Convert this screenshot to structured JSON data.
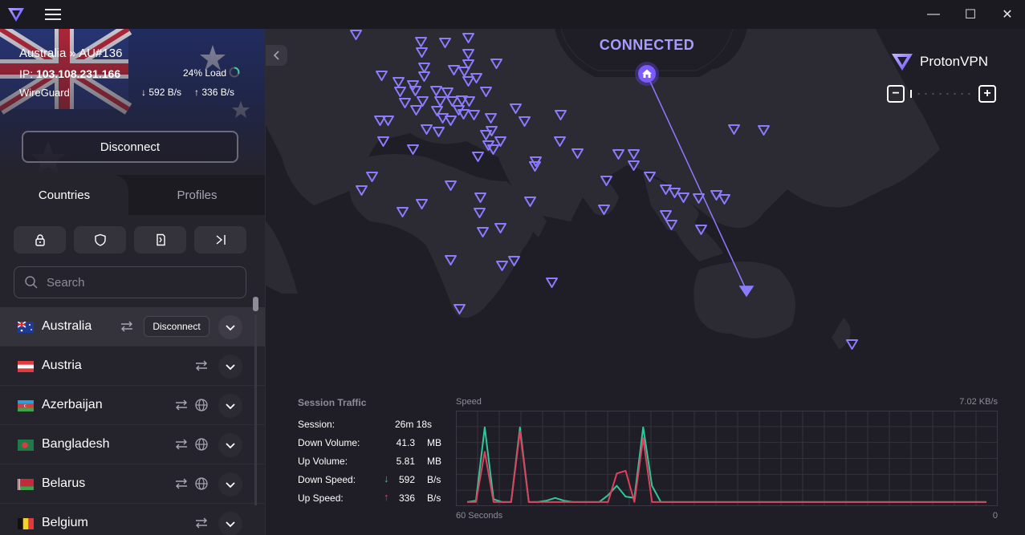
{
  "titlebar": {
    "minimize": "—",
    "maximize": "☐",
    "close": "✕"
  },
  "connection": {
    "server": "Australia » AU#136",
    "ip_label": "IP:",
    "ip": "103.108.231.166",
    "load": "24% Load",
    "protocol": "WireGuard",
    "down_speed": "592 B/s",
    "up_speed": "336 B/s",
    "disconnect_label": "Disconnect"
  },
  "tabs": {
    "countries": "Countries",
    "profiles": "Profiles"
  },
  "search": {
    "placeholder": "Search"
  },
  "countries": [
    {
      "name": "Australia",
      "connected": true,
      "disconnect_label": "Disconnect"
    },
    {
      "name": "Austria"
    },
    {
      "name": "Azerbaijan"
    },
    {
      "name": "Bangladesh"
    },
    {
      "name": "Belarus"
    },
    {
      "name": "Belgium"
    }
  ],
  "map": {
    "status": "CONNECTED",
    "brand": "ProtonVPN",
    "zoom_out": "−",
    "zoom_in": "+"
  },
  "traffic": {
    "title": "Session Traffic",
    "rows": [
      {
        "label": "Session:",
        "value": "26m 18s",
        "unit": ""
      },
      {
        "label": "Down Volume:",
        "value": "41.3",
        "unit": "MB"
      },
      {
        "label": "Up Volume:",
        "value": "5.81",
        "unit": "MB"
      },
      {
        "label": "Down Speed:",
        "value": "592",
        "unit": "B/s"
      },
      {
        "label": "Up Speed:",
        "value": "336",
        "unit": "B/s"
      }
    ]
  },
  "chart_data": {
    "type": "line",
    "title": "Speed",
    "max_label": "7.02  KB/s",
    "x_start_label": "60 Seconds",
    "x_end_label": "0",
    "ylim": [
      0,
      7.02
    ],
    "grid": true,
    "colors": {
      "down": "#2fc89a",
      "up": "#e0405e"
    },
    "series": [
      {
        "name": "down",
        "values": [
          0.3,
          0.4,
          5.8,
          0.5,
          0.3,
          0.3,
          5.8,
          0.3,
          0.3,
          0.4,
          0.6,
          0.4,
          0.3,
          0.3,
          0.3,
          0.3,
          0.8,
          1.5,
          0.7,
          0.6,
          5.8,
          1.5,
          0.3,
          0.3,
          0.3,
          0.3,
          0.3,
          0.3,
          0.3,
          0.3,
          0.3,
          0.3,
          0.3,
          0.3,
          0.3,
          0.3,
          0.3,
          0.3,
          0.3,
          0.3,
          0.3,
          0.3,
          0.3,
          0.3,
          0.3,
          0.3,
          0.3,
          0.3,
          0.3,
          0.3,
          0.3,
          0.3,
          0.3,
          0.3,
          0.3,
          0.3,
          0.3,
          0.3,
          0.3,
          0.3
        ]
      },
      {
        "name": "up",
        "values": [
          0.3,
          0.3,
          4.0,
          0.3,
          0.3,
          0.3,
          5.5,
          0.3,
          0.3,
          0.3,
          0.3,
          0.3,
          0.3,
          0.3,
          0.3,
          0.3,
          0.3,
          2.4,
          2.6,
          0.3,
          5.0,
          0.3,
          0.3,
          0.3,
          0.3,
          0.3,
          0.3,
          0.3,
          0.3,
          0.3,
          0.3,
          0.3,
          0.3,
          0.3,
          0.3,
          0.3,
          0.3,
          0.3,
          0.3,
          0.3,
          0.3,
          0.3,
          0.3,
          0.3,
          0.3,
          0.3,
          0.3,
          0.3,
          0.3,
          0.3,
          0.3,
          0.3,
          0.3,
          0.3,
          0.3,
          0.3,
          0.3,
          0.3,
          0.3,
          0.3
        ]
      }
    ]
  },
  "colors": {
    "accent": "#8b7cff",
    "background": "#17151c",
    "sidebar": "#25232c"
  }
}
